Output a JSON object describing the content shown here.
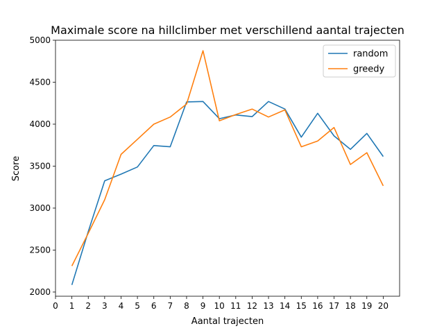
{
  "chart_data": {
    "type": "line",
    "title": "Maximale score na hillclimber met verschillend aantal trajecten",
    "xlabel": "Aantal trajecten",
    "ylabel": "Score",
    "xlim": [
      0,
      21
    ],
    "ylim": [
      1950,
      5000
    ],
    "xticks": [
      0,
      1,
      2,
      3,
      4,
      5,
      6,
      7,
      8,
      9,
      10,
      11,
      12,
      13,
      14,
      15,
      16,
      17,
      18,
      19,
      20
    ],
    "yticks": [
      2000,
      2500,
      3000,
      3500,
      4000,
      4500,
      5000
    ],
    "grid": false,
    "legend_position": "top-right",
    "x": [
      1,
      2,
      3,
      4,
      5,
      6,
      7,
      8,
      9,
      10,
      11,
      12,
      13,
      14,
      15,
      16,
      17,
      18,
      19,
      20
    ],
    "series": [
      {
        "name": "random",
        "color": "#1f77b4",
        "values": [
          2085,
          2720,
          3325,
          3405,
          3490,
          3745,
          3730,
          4265,
          4270,
          4065,
          4110,
          4090,
          4270,
          4180,
          3845,
          4130,
          3860,
          3700,
          3890,
          3615
        ]
      },
      {
        "name": "greedy",
        "color": "#ff7f0e",
        "values": [
          2310,
          2700,
          3100,
          3640,
          3820,
          4000,
          4085,
          4240,
          4875,
          4040,
          4115,
          4180,
          4085,
          4170,
          3730,
          3800,
          3960,
          3520,
          3660,
          3265
        ]
      }
    ]
  }
}
